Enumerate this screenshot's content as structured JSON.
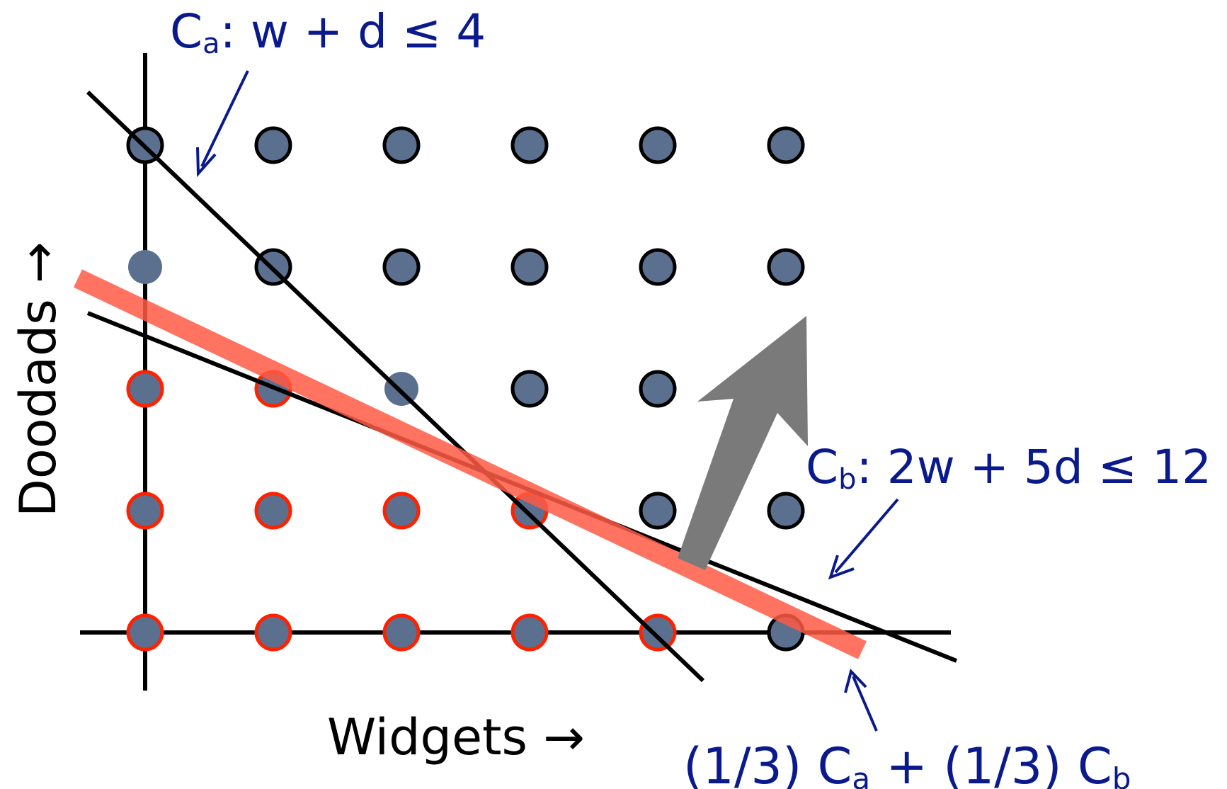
{
  "diagram": {
    "x_axis_label": "Widgets →",
    "y_axis_label": "Doodads →",
    "constraint_a": {
      "symbol": "C",
      "subscript": "a",
      "expression": ": w + d ≤ 4"
    },
    "constraint_b": {
      "symbol": "C",
      "subscript": "b",
      "expression": ": 2w + 5d ≤ 12"
    },
    "combination": {
      "part1": "(1/3) C",
      "sub1": "a",
      "part2": " + (1/3) C",
      "sub2": "b"
    },
    "grid": {
      "w_values": [
        0,
        1,
        2,
        3,
        4,
        5
      ],
      "d_values": [
        0,
        1,
        2,
        3,
        4
      ],
      "red_ring_points": [
        [
          0,
          0
        ],
        [
          1,
          0
        ],
        [
          2,
          0
        ],
        [
          3,
          0
        ],
        [
          4,
          0
        ],
        [
          0,
          1
        ],
        [
          1,
          1
        ],
        [
          2,
          1
        ],
        [
          3,
          1
        ],
        [
          0,
          2
        ],
        [
          1,
          2
        ]
      ],
      "black_ring_points": [
        [
          5,
          0
        ],
        [
          4,
          1
        ],
        [
          5,
          1
        ],
        [
          3,
          2
        ],
        [
          4,
          2
        ],
        [
          0,
          4
        ],
        [
          1,
          4
        ],
        [
          2,
          4
        ],
        [
          3,
          4
        ],
        [
          4,
          4
        ],
        [
          5,
          4
        ],
        [
          1,
          3
        ],
        [
          2,
          3
        ],
        [
          3,
          3
        ],
        [
          4,
          3
        ],
        [
          5,
          3
        ]
      ],
      "no_ring_points": [
        [
          0,
          3
        ],
        [
          2,
          2
        ]
      ]
    },
    "colors": {
      "dot_fill": "#5b6f8f",
      "red_ring": "#ff2200",
      "black_ring": "#000000",
      "red_line": "#ff5a44",
      "arrow_gray": "#7a7a7a",
      "label_blue": "#0a1a8c"
    }
  }
}
